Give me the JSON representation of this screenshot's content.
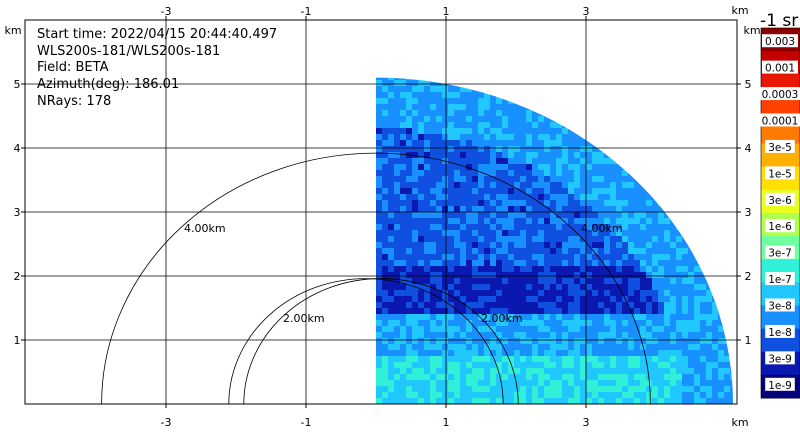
{
  "plot": {
    "info_lines": [
      "Start time: 2022/04/15 20:44:40.497",
      "WLS200s-181/WLS200s-181",
      "Field: BETA",
      "Azimuth(deg): 186.01",
      "NRays: 178"
    ],
    "x_unit_label": "km",
    "y_unit_label": "km",
    "x_tick_labels": [
      "-3",
      "-1",
      "1",
      "3"
    ],
    "y_tick_labels": [
      "1",
      "2",
      "3",
      "4",
      "5"
    ],
    "range_ring_labels": [
      "4.00km",
      "2.00km",
      "4.00km",
      "2.00km"
    ],
    "colors": {
      "grid": "#000000",
      "background": "#ffffff"
    }
  },
  "colorbar": {
    "title": "-1 sr",
    "labels": [
      "0.003",
      "0.001",
      "0.0003",
      "0.0001",
      "3e-5",
      "1e-5",
      "3e-6",
      "1e-6",
      "3e-7",
      "1e-7",
      "3e-8",
      "1e-8",
      "3e-9",
      "1e-9"
    ],
    "colors": [
      "#8c0000",
      "#c40000",
      "#e81800",
      "#ff4000",
      "#ff7a00",
      "#ffb000",
      "#ffe000",
      "#e8ff20",
      "#b0ff50",
      "#70ffa0",
      "#30f0d8",
      "#20c8ff",
      "#1890ff",
      "#1050e0",
      "#0a18b0",
      "#06007a"
    ]
  },
  "chart_data": {
    "type": "heatmap",
    "title": "",
    "field": "BETA",
    "xlabel": "km",
    "ylabel": "km",
    "xlim": [
      -4,
      4
    ],
    "ylim": [
      0,
      5.3
    ],
    "x_ticks": [
      -3,
      -1,
      1,
      3
    ],
    "y_ticks": [
      1,
      2,
      3,
      4,
      5
    ],
    "range_rings_km": [
      2,
      4,
      4,
      2
    ],
    "sweep_extent_km": 5.1,
    "grid": true,
    "colorbar_title": "-1 sr"
  }
}
